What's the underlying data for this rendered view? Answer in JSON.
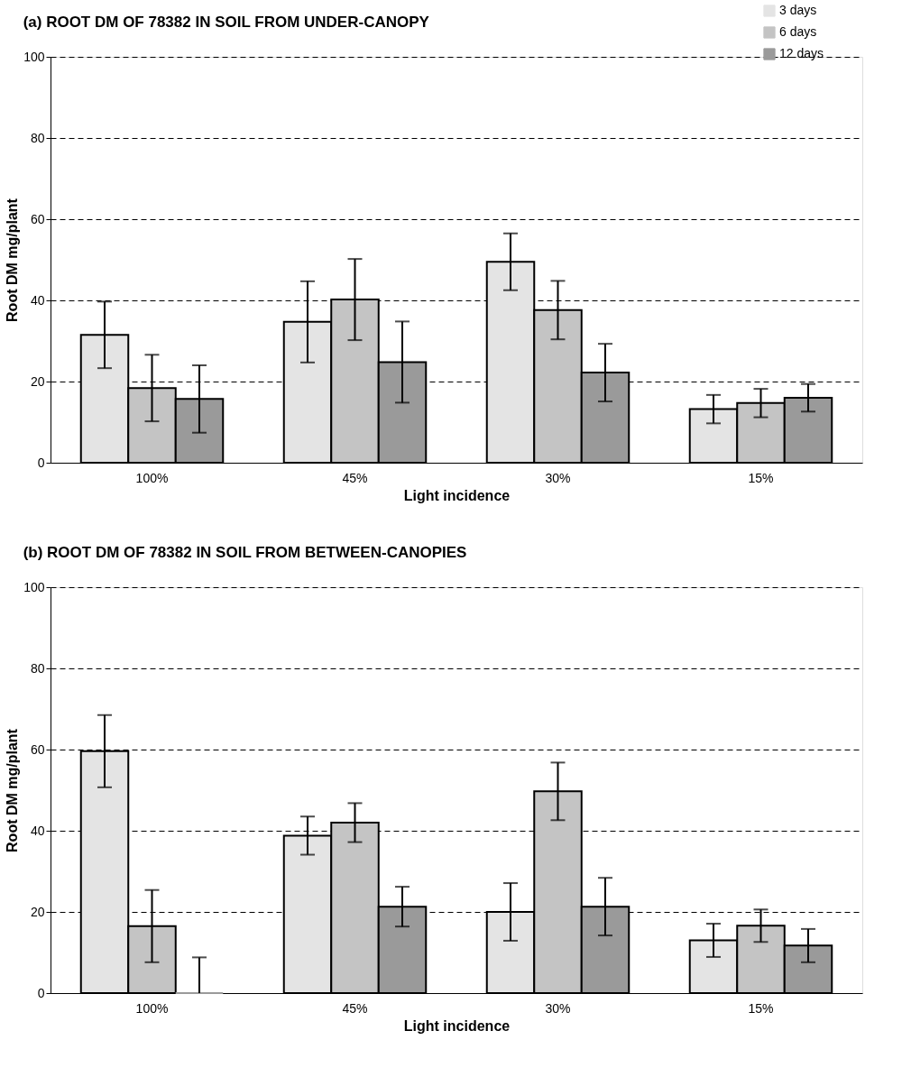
{
  "chart_data": [
    {
      "type": "bar",
      "title": "(a) ROOT DM OF 78382 IN SOIL FROM UNDER-CANOPY",
      "xlabel": "Light incidence",
      "ylabel": "Root DM mg/plant",
      "categories": [
        "100%",
        "45%",
        "30%",
        "15%"
      ],
      "series": [
        {
          "name": "3 days",
          "color": "#e4e4e4",
          "values": [
            31.5,
            34.7,
            49.5,
            13.2
          ],
          "errors": [
            8.2,
            10,
            7,
            3.5
          ]
        },
        {
          "name": "6 days",
          "color": "#c4c4c4",
          "values": [
            18.4,
            40.2,
            37.6,
            14.7
          ],
          "errors": [
            8.2,
            10,
            7.2,
            3.5
          ]
        },
        {
          "name": "12 days",
          "color": "#9a9a9a",
          "values": [
            15.7,
            24.8,
            22.2,
            16.0
          ],
          "errors": [
            8.3,
            10,
            7.1,
            3.4
          ]
        }
      ],
      "ylim": [
        0,
        100
      ],
      "yticks": [
        0,
        20,
        40,
        60,
        80,
        100
      ],
      "grid": "y",
      "legend": "top right"
    },
    {
      "type": "bar",
      "title": "(b) ROOT DM OF 78382 IN SOIL FROM BETWEEN-CANOPIES",
      "xlabel": "Light incidence",
      "ylabel": "Root DM mg/plant",
      "categories": [
        "100%",
        "45%",
        "30%",
        "15%"
      ],
      "series": [
        {
          "name": "3 days",
          "color": "#e4e4e4",
          "values": [
            59.6,
            38.8,
            20.0,
            13.0
          ],
          "errors": [
            8.9,
            4.7,
            7.1,
            4.1
          ]
        },
        {
          "name": "6 days",
          "color": "#c4c4c4",
          "values": [
            16.5,
            42.0,
            49.7,
            16.6
          ],
          "errors": [
            8.9,
            4.8,
            7.1,
            4.0
          ]
        },
        {
          "name": "12 days",
          "color": "#9a9a9a",
          "values": [
            0,
            21.3,
            21.3,
            11.7
          ],
          "errors": [
            [
              0,
              8.8
            ],
            4.9,
            7.1,
            4.1
          ]
        }
      ],
      "ylim": [
        0,
        100
      ],
      "yticks": [
        0,
        20,
        40,
        60,
        80,
        100
      ],
      "grid": "y",
      "legend": "top right"
    }
  ]
}
